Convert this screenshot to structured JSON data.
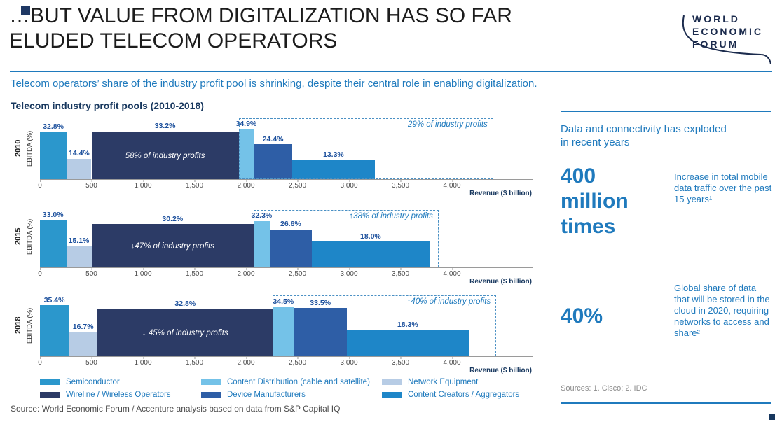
{
  "header": {
    "title_line1": "…BUT VALUE FROM DIGITALIZATION HAS SO FAR",
    "title_line2": "ELUDED TELECOM OPERATORS",
    "logo_lines": [
      "WORLD",
      "ECONOMIC",
      "FORUM"
    ]
  },
  "subtitle": "Telecom operators’ share of the industry profit pool is shrinking, despite their central role in enabling digitalization.",
  "chart_title": "Telecom industry profit pools (2010-2018)",
  "chart_data": {
    "type": "bar",
    "variant": "marimekko",
    "title": "Telecom industry profit pools (2010-2018)",
    "xlabel": "Revenue ($ billion)",
    "ylabel": "EBITDA (%)",
    "x_ticks": [
      "0",
      "500",
      "1,000",
      "1,500",
      "2,000",
      "2,500",
      "3,000",
      "3,500",
      "4,000"
    ],
    "x_tick_values": [
      0,
      500,
      1000,
      1500,
      2000,
      2500,
      3000,
      3500,
      4000
    ],
    "xlim": [
      0,
      4000
    ],
    "ylim": [
      0,
      40
    ],
    "legend_position": "bottom",
    "grid": false,
    "years": [
      {
        "year": "2010",
        "bars": [
          {
            "segment": "Semiconductor",
            "color": "semiconductor",
            "ebitda_pct": 32.8,
            "label": "32.8%",
            "revenue_start": 0,
            "revenue_end": 260
          },
          {
            "segment": "Network Equipment",
            "color": "network_equipment",
            "ebitda_pct": 14.4,
            "label": "14.4%",
            "revenue_start": 260,
            "revenue_end": 500
          },
          {
            "segment": "Wireline / Wireless Operators",
            "color": "operators",
            "ebitda_pct": 33.2,
            "label": "33.2%",
            "revenue_start": 500,
            "revenue_end": 1930,
            "inner_label": "58% of industry profits"
          },
          {
            "segment": "Content Distribution (cable and satellite)",
            "color": "content_distribution",
            "ebitda_pct": 34.9,
            "label": "34.9%",
            "revenue_start": 1930,
            "revenue_end": 2075
          },
          {
            "segment": "Device Manufacturers",
            "color": "device_manufacturers",
            "ebitda_pct": 24.4,
            "label": "24.4%",
            "revenue_start": 2075,
            "revenue_end": 2450
          },
          {
            "segment": "Content Creators / Aggregators",
            "color": "content_creators",
            "ebitda_pct": 13.3,
            "label": "13.3%",
            "revenue_start": 2450,
            "revenue_end": 3250
          }
        ],
        "group_box": {
          "label": "29% of industry profits",
          "revenue_start": 1930,
          "revenue_end": 4400
        }
      },
      {
        "year": "2015",
        "bars": [
          {
            "segment": "Semiconductor",
            "color": "semiconductor",
            "ebitda_pct": 33.0,
            "label": "33.0%",
            "revenue_start": 0,
            "revenue_end": 255
          },
          {
            "segment": "Network Equipment",
            "color": "network_equipment",
            "ebitda_pct": 15.1,
            "label": "15.1%",
            "revenue_start": 255,
            "revenue_end": 500
          },
          {
            "segment": "Wireline / Wireless Operators",
            "color": "operators",
            "ebitda_pct": 30.2,
            "label": "30.2%",
            "revenue_start": 500,
            "revenue_end": 2075,
            "inner_label": "↓47% of industry profits"
          },
          {
            "segment": "Content Distribution (cable and satellite)",
            "color": "content_distribution",
            "ebitda_pct": 32.3,
            "label": "32.3%",
            "revenue_start": 2075,
            "revenue_end": 2230
          },
          {
            "segment": "Device Manufacturers",
            "color": "device_manufacturers",
            "ebitda_pct": 26.6,
            "label": "26.6%",
            "revenue_start": 2230,
            "revenue_end": 2640
          },
          {
            "segment": "Content Creators / Aggregators",
            "color": "content_creators",
            "ebitda_pct": 18.0,
            "label": "18.0%",
            "revenue_start": 2640,
            "revenue_end": 3780
          }
        ],
        "group_box": {
          "label": "↑38% of industry profits",
          "revenue_start": 2075,
          "revenue_end": 3870
        }
      },
      {
        "year": "2018",
        "bars": [
          {
            "segment": "Semiconductor",
            "color": "semiconductor",
            "ebitda_pct": 35.4,
            "label": "35.4%",
            "revenue_start": 0,
            "revenue_end": 280
          },
          {
            "segment": "Network Equipment",
            "color": "network_equipment",
            "ebitda_pct": 16.7,
            "label": "16.7%",
            "revenue_start": 280,
            "revenue_end": 560
          },
          {
            "segment": "Wireline / Wireless Operators",
            "color": "operators",
            "ebitda_pct": 32.8,
            "label": "32.8%",
            "revenue_start": 560,
            "revenue_end": 2260,
            "inner_label": "↓ 45% of industry profits"
          },
          {
            "segment": "Content Distribution (cable and satellite)",
            "color": "content_distribution",
            "ebitda_pct": 34.5,
            "label": "34.5%",
            "revenue_start": 2260,
            "revenue_end": 2465
          },
          {
            "segment": "Device Manufacturers",
            "color": "device_manufacturers",
            "ebitda_pct": 33.5,
            "label": "33.5%",
            "revenue_start": 2465,
            "revenue_end": 2980
          },
          {
            "segment": "Content Creators / Aggregators",
            "color": "content_creators",
            "ebitda_pct": 18.3,
            "label": "18.3%",
            "revenue_start": 2980,
            "revenue_end": 4160
          }
        ],
        "group_box": {
          "label": "↑40% of industry profits",
          "revenue_start": 2260,
          "revenue_end": 4430
        }
      }
    ]
  },
  "legend": {
    "items": [
      {
        "label": "Semiconductor",
        "color": "semiconductor"
      },
      {
        "label": "Content Distribution (cable and satellite)",
        "color": "content_distribution"
      },
      {
        "label": "Network Equipment",
        "color": "network_equipment"
      },
      {
        "label": "Wireline / Wireless Operators",
        "color": "operators"
      },
      {
        "label": "Device Manufacturers",
        "color": "device_manufacturers"
      },
      {
        "label": "Content Creators / Aggregators",
        "color": "content_creators"
      }
    ]
  },
  "right_panel": {
    "intro": "Data and connectivity has exploded in recent years",
    "stats": [
      {
        "value": "400 million times",
        "note": "Increase in total mobile data traffic over the past 15 years¹"
      },
      {
        "value": "40%",
        "note": "Global share of data that will be stored in the cloud in 2020, requiring networks to access and share²"
      }
    ],
    "sources": "Sources: 1. Cisco; 2. IDC"
  },
  "source": "Source: World Economic Forum / Accenture analysis based on data from S&P Capital IQ",
  "colors": {
    "semiconductor": "#2B97CC",
    "network_equipment": "#B7CCE5",
    "operators": "#2C3B66",
    "content_distribution": "#74C2E8",
    "device_manufacturers": "#2E5EA6",
    "content_creators": "#1E86C8",
    "accent_blue": "#1F7ABD",
    "value_label_blue": "#1B4F9C",
    "navy": "#17375E"
  }
}
